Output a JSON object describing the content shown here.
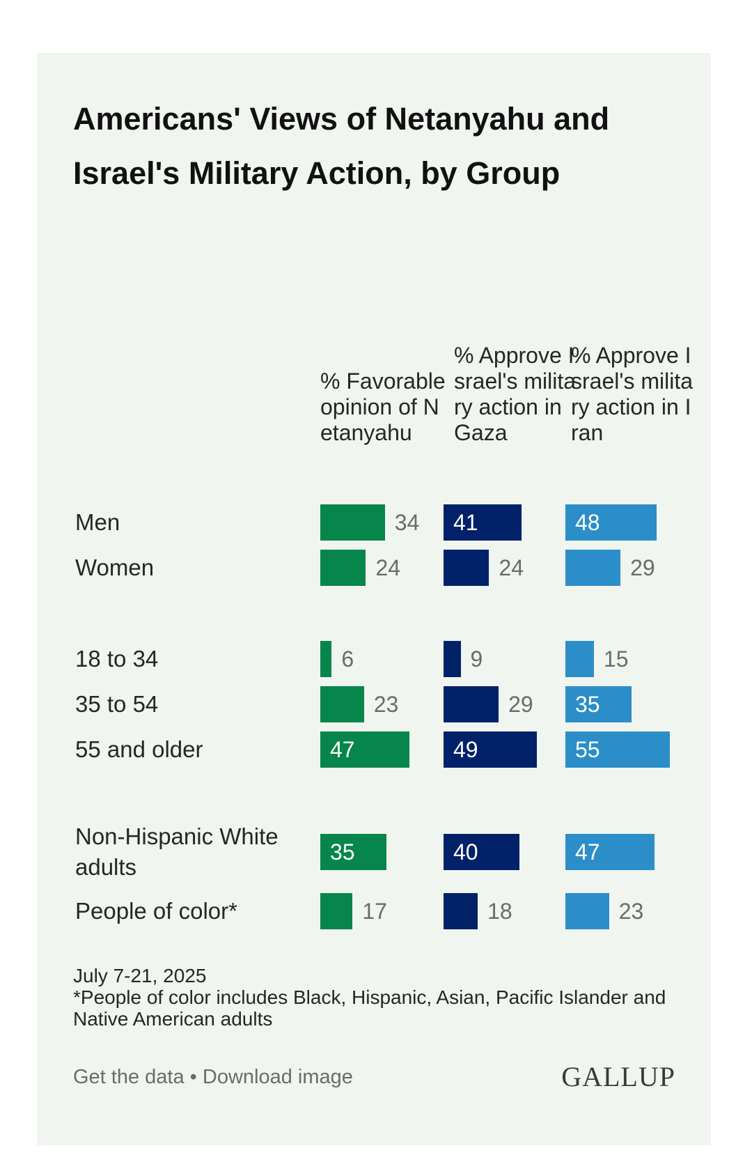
{
  "chart_data": {
    "type": "bar",
    "title": "Americans' Views of Netanyahu and Israel's Military Action, by Group",
    "columns": [
      {
        "name": "% Favorable opinion of Netanyahu",
        "color": "#06864a"
      },
      {
        "name": "% Approve Israel's military action in Gaza",
        "color": "#012169"
      },
      {
        "name": "% Approve Israel's military action in Iran",
        "color": "#2b8ec9"
      }
    ],
    "rows": [
      {
        "label": "Men",
        "values": [
          34,
          41,
          48
        ]
      },
      {
        "label": "Women",
        "values": [
          24,
          24,
          29
        ]
      },
      {
        "label": "18 to 34",
        "values": [
          6,
          9,
          15
        ]
      },
      {
        "label": "35 to 54",
        "values": [
          23,
          29,
          35
        ]
      },
      {
        "label": "55 and older",
        "values": [
          47,
          49,
          55
        ]
      },
      {
        "label": "Non-Hispanic White adults",
        "values": [
          35,
          40,
          47
        ]
      },
      {
        "label": "People of color*",
        "values": [
          17,
          18,
          23
        ]
      }
    ],
    "groups": [
      [
        0,
        1
      ],
      [
        2,
        3,
        4
      ],
      [
        5,
        6
      ]
    ],
    "xlim": [
      0,
      55
    ]
  },
  "notes": {
    "date": "July 7-21, 2025",
    "footnote": "*People of color includes Black, Hispanic, Asian, Pacific Islander and Native American adults"
  },
  "footer": {
    "get_data": "Get the data",
    "separator": " • ",
    "download": "Download image",
    "logo": "GALLUP"
  }
}
